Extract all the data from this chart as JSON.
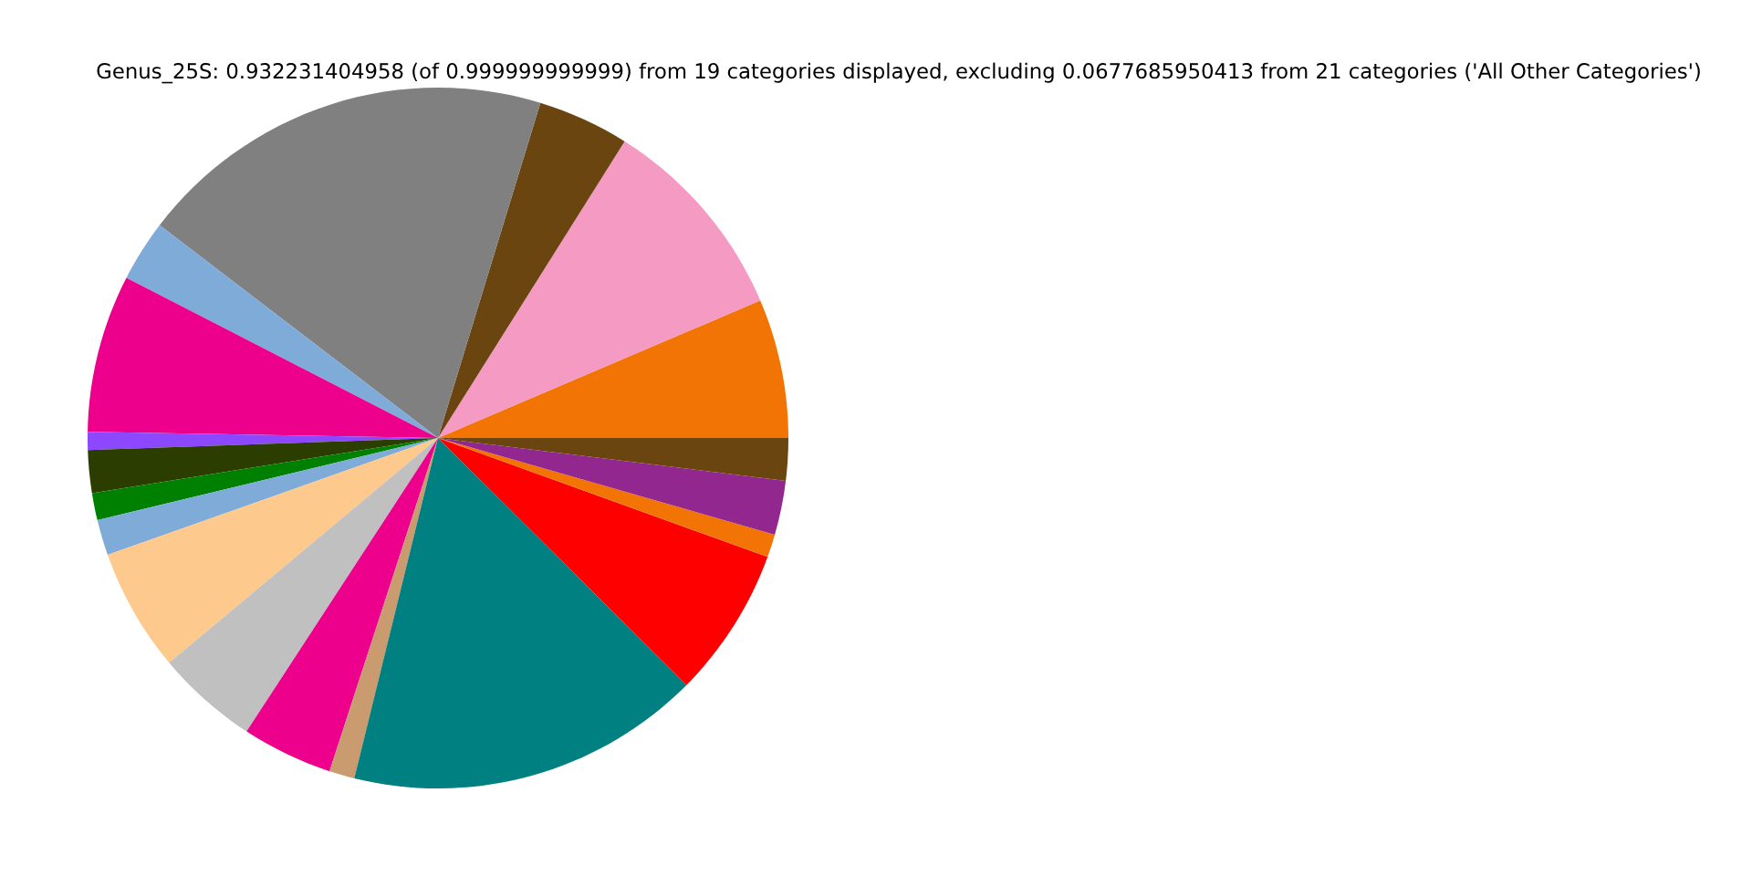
{
  "chart_data": {
    "type": "pie",
    "title": "Genus_25S: 0.932231404958 (of 0.999999999999) from 19 categories displayed, excluding 0.0677685950413 from 21 categories ('All Other Categories')",
    "categories": [
      null,
      null,
      null,
      null,
      null,
      null,
      null,
      null,
      null,
      null,
      null,
      null,
      null,
      null,
      null,
      null,
      null,
      null,
      null
    ],
    "values": [
      6.42,
      9.64,
      4.22,
      19.33,
      2.83,
      7.28,
      0.83,
      1.97,
      1.25,
      1.64,
      5.67,
      4.72,
      4.19,
      1.17,
      16.39,
      6.94,
      1.06,
      2.5,
      1.95
    ],
    "colors": [
      "#f27405",
      "#f49ac3",
      "#6b4510",
      "#808080",
      "#7fabd9",
      "#ec008c",
      "#8c48ff",
      "#2c3d00",
      "#008000",
      "#7fabd9",
      "#fdc98c",
      "#c0c0c0",
      "#ec008c",
      "#c99b6e",
      "#008080",
      "#ff0000",
      "#f27405",
      "#92278f",
      "#6b4510"
    ]
  }
}
